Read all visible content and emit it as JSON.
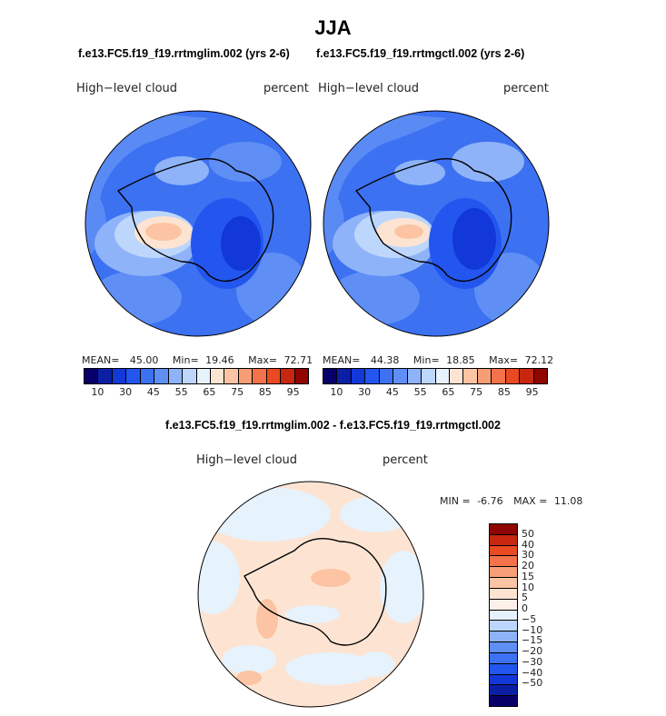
{
  "title": "JJA",
  "panels": [
    {
      "case_title": "f.e13.FC5.f19_f19.rrtmglim.002 (yrs 2-6)",
      "variable": "High−level cloud",
      "units": "percent",
      "mean_label": "MEAN=",
      "mean": "45.00",
      "min_label": "Min=",
      "min": "19.46",
      "max_label": "Max=",
      "max": "72.71"
    },
    {
      "case_title": "f.e13.FC5.f19_f19.rrtmgctl.002 (yrs 2-6)",
      "variable": "High−level cloud",
      "units": "percent",
      "mean_label": "MEAN=",
      "mean": "44.38",
      "min_label": "Min=",
      "min": "18.85",
      "max_label": "Max=",
      "max": "72.12"
    }
  ],
  "top_colorbar": {
    "colors": [
      "#08006a",
      "#0b1fa5",
      "#1238d9",
      "#2356ee",
      "#3c71f2",
      "#5f8ef5",
      "#8eb3f8",
      "#bdd6fb",
      "#e6f2fc",
      "#fde4d2",
      "#fcc4a3",
      "#f79e77",
      "#f3724b",
      "#ea4a22",
      "#c7270f",
      "#8f0500"
    ],
    "ticks": [
      "10",
      "30",
      "45",
      "55",
      "65",
      "75",
      "85",
      "95"
    ]
  },
  "diff": {
    "title": "f.e13.FC5.f19_f19.rrtmglim.002 - f.e13.FC5.f19_f19.rrtmgctl.002",
    "variable": "High−level cloud",
    "units": "percent",
    "min_label": "MIN =",
    "min": "-6.76",
    "max_label": "MAX =",
    "max": "11.08"
  },
  "diff_colorbar": {
    "colors": [
      "#8f0500",
      "#c7270f",
      "#ea4a22",
      "#f3724b",
      "#f79e77",
      "#fcc4a3",
      "#fde4d2",
      "#fdf0e8",
      "#e6f2fc",
      "#bdd6fb",
      "#8eb3f8",
      "#5f8ef5",
      "#3c71f2",
      "#2356ee",
      "#1238d9",
      "#0b1fa5",
      "#08006a"
    ],
    "ticks": [
      "50",
      "40",
      "30",
      "20",
      "15",
      "10",
      "5",
      "0",
      "−5",
      "−10",
      "−15",
      "−20",
      "−30",
      "−40",
      "−50"
    ]
  }
}
